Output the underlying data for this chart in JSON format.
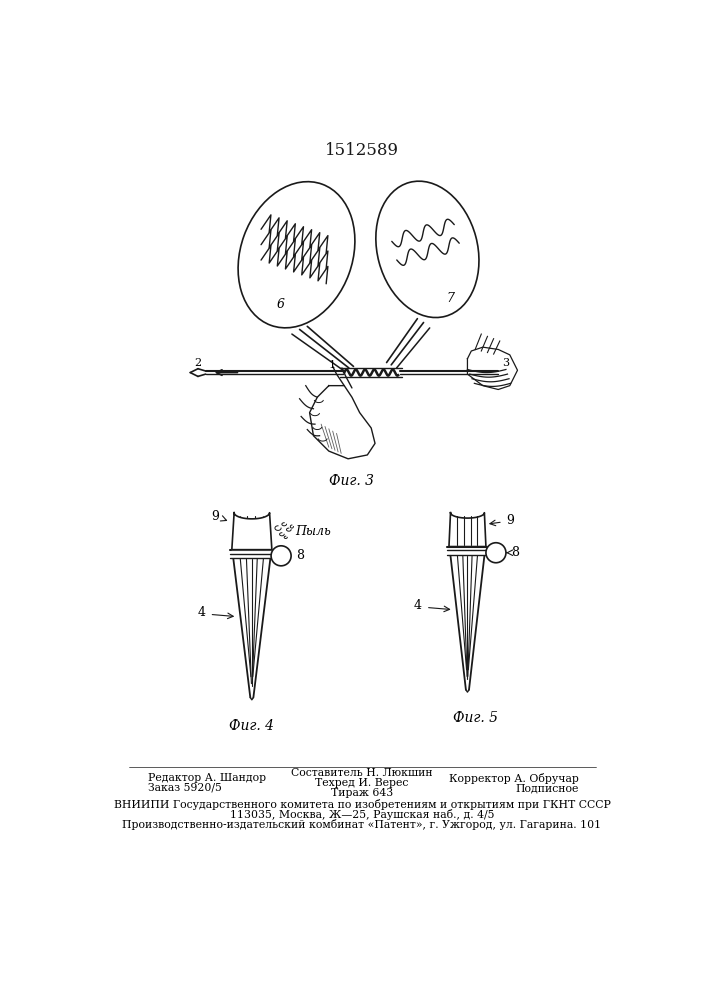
{
  "patent_number": "1512589",
  "fig3_label": "Фиг. 3",
  "fig4_label": "Фиг. 4",
  "fig5_label": "Фиг. 5",
  "dust_label": "Пыль",
  "footer_line1_left": "Редактор А. Шандор",
  "footer_line2_left": "Заказ 5920/5",
  "footer_line1_center": "Составитель Н. Люкшин",
  "footer_line2_center": "Техред И. Верес",
  "footer_line3_center": "Тираж 643",
  "footer_line1_right": "Корректор А. Обручар",
  "footer_line2_right": "Подписное",
  "footer_vniiipi": "ВНИИПИ Государственного комитета по изобретениям и открытиям при ГКНТ СССР",
  "footer_address": "113035, Москва, Ж—25, Раушская наб., д. 4/5",
  "footer_kombinat": "Производственно-издательский комбинат «Патент», г. Ужгород, ул. Гагарина. 101",
  "bg_color": "#ffffff",
  "line_color": "#1a1a1a"
}
